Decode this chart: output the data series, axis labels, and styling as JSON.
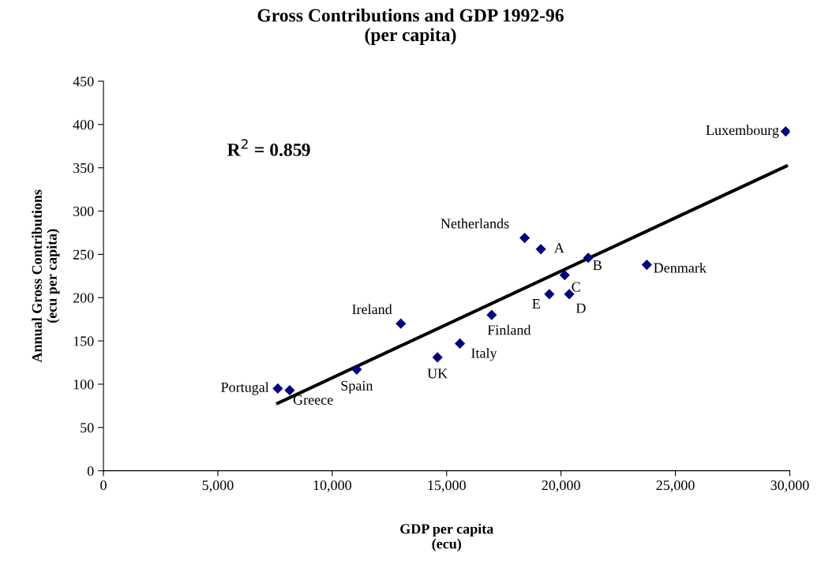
{
  "chart_data": {
    "type": "scatter",
    "title": "Gross Contributions and GDP 1992-96\n(per capita)",
    "xlabel": "GDP per capita\n(ecu)",
    "ylabel": "Annual Gross Contributions\n(ecu per capita)",
    "series": [
      {
        "color": "#000080",
        "marker": "diamond",
        "x": [
          7620,
          8140,
          11070,
          13000,
          14600,
          15580,
          16970,
          18410,
          19120,
          21190,
          20160,
          19490,
          20360,
          23750,
          29820
        ],
        "values": [
          95,
          93,
          117,
          170,
          131,
          147,
          180,
          269,
          256,
          246,
          226,
          204,
          204,
          238,
          392
        ]
      },
      {
        "type": "line",
        "color": "#000000",
        "marker": "none",
        "line_style": "solid",
        "x": [
          7620,
          29850
        ],
        "values": [
          78,
          352
        ]
      }
    ],
    "annotations": [
      {
        "text": "Portugal",
        "x": 7620,
        "y": 95
      },
      {
        "text": "Greece",
        "x": 8140,
        "y": 93
      },
      {
        "text": "Spain",
        "x": 11070,
        "y": 117
      },
      {
        "text": "Ireland",
        "x": 13000,
        "y": 170
      },
      {
        "text": "UK",
        "x": 14600,
        "y": 131
      },
      {
        "text": "Italy",
        "x": 15580,
        "y": 147
      },
      {
        "text": "Finland",
        "x": 16970,
        "y": 180
      },
      {
        "text": "Netherlands",
        "x": 18410,
        "y": 269
      },
      {
        "text": "A",
        "x": 19120,
        "y": 256
      },
      {
        "text": "B",
        "x": 21190,
        "y": 246
      },
      {
        "text": "C",
        "x": 20160,
        "y": 226
      },
      {
        "text": "E",
        "x": 19490,
        "y": 204
      },
      {
        "text": "D",
        "x": 20360,
        "y": 204
      },
      {
        "text": "Denmark",
        "x": 23750,
        "y": 238
      },
      {
        "text": "Luxembourg",
        "x": 29820,
        "y": 392
      },
      "R$^{2}$ = 0.859"
    ],
    "xlim": [
      0,
      30000
    ],
    "xticks": [
      0,
      {
        "value": 5000,
        "label": "5,000"
      },
      {
        "value": 10000,
        "label": "10,000"
      },
      {
        "value": 15000,
        "label": "15,000"
      },
      {
        "value": 20000,
        "label": "20,000"
      },
      {
        "value": 25000,
        "label": "25,000"
      },
      {
        "value": 30000,
        "label": "30,000"
      }
    ],
    "ylim": [
      0,
      450
    ],
    "yticks": [
      0,
      50,
      100,
      150,
      200,
      250,
      300,
      350,
      400,
      450
    ],
    "grid": false,
    "legend": false
  }
}
